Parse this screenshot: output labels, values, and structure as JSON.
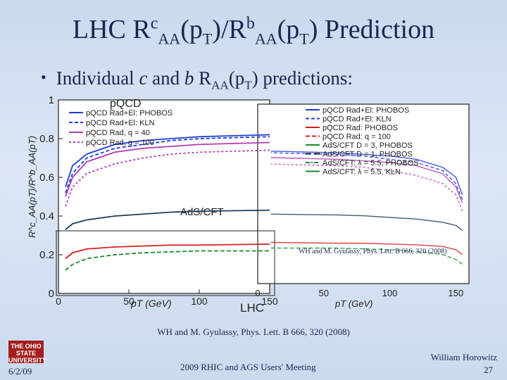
{
  "slide": {
    "title_main": "LHC R",
    "title_sup_c": "c",
    "title_sub_aa1": "AA",
    "title_pt1": "(p",
    "title_sub_t1": "T",
    "title_mid": ")/R",
    "title_sup_b": "b",
    "title_sub_aa2": "AA",
    "title_pt2": "(p",
    "title_sub_t2": "T",
    "title_end": ") Prediction",
    "bullet_pre": "Individual ",
    "bullet_c": "c",
    "bullet_and": " and ",
    "bullet_b": "b",
    "bullet_R": " R",
    "bullet_sub_aa": "AA",
    "bullet_pt": "(p",
    "bullet_sub_t": "T",
    "bullet_post": ") predictions:",
    "citation_left": "WH and M. Gyulassy, Phys. Lett. B 666, 320 (2008)",
    "citation_right": "WH and M. Gyulassy, Phys. Lett. B 666, 320 (2008)",
    "footer_date": "6/2/09",
    "footer_meeting": "2009 RHIC and AGS Users' Meeting",
    "footer_author": "William Horowitz",
    "footer_page": "27",
    "logo_text": "THE OHIO STATE UNIVERSITY"
  },
  "chart_data": {
    "type": "line",
    "title": "",
    "xlabel": "pT (GeV)",
    "ylabel": "R^c_AA(pT)/R^b_AA(pT)",
    "center_label": "LHC",
    "xlim": [
      0,
      150
    ],
    "ylim": [
      0,
      1
    ],
    "yticks": [
      "0",
      "0.2",
      "0.4",
      "0.6",
      "0.8",
      "1"
    ],
    "xticks": [
      "0",
      "50",
      "100",
      "150"
    ],
    "left_panel_labels": [
      "pQCD",
      "AdS/CFT"
    ],
    "legend_left": [
      "pQCD Rad+El: PHOBOS",
      "pQCD Rad+El: KLN",
      "pQCD Rad, q = 40",
      "pQCD Rad, q = 100"
    ],
    "legend_right": [
      "pQCD Rad+El: PHOBOS",
      "pQCD Rad+El: KLN",
      "pQCD Rad: PHOBOS",
      "pQCD Rad: q = 100",
      "AdS/CFT D = 3, PHOBOS",
      "AdS/CFT D = 1, PHOBOS",
      "AdS/CFT: λ = 5.5, PHOBOS",
      "AdS/CFT: λ = 5.5, KLN"
    ],
    "series_left": [
      {
        "name": "pQCD Rad+El: PHOBOS",
        "color": "#1e3cd8",
        "dash": "",
        "x": [
          5,
          10,
          20,
          40,
          60,
          80,
          100,
          150
        ],
        "y": [
          0.55,
          0.66,
          0.72,
          0.77,
          0.79,
          0.8,
          0.81,
          0.82
        ]
      },
      {
        "name": "pQCD Rad+El: KLN",
        "color": "#1e3cd8",
        "dash": "5,3",
        "x": [
          5,
          10,
          20,
          40,
          60,
          80,
          100,
          150
        ],
        "y": [
          0.52,
          0.62,
          0.7,
          0.75,
          0.77,
          0.79,
          0.8,
          0.81
        ]
      },
      {
        "name": "pQCD Rad, q = 40",
        "color": "#b03ab5",
        "dash": "",
        "x": [
          5,
          10,
          20,
          40,
          60,
          80,
          100,
          150
        ],
        "y": [
          0.5,
          0.6,
          0.68,
          0.73,
          0.75,
          0.76,
          0.77,
          0.78
        ]
      },
      {
        "name": "pQCD Rad, q = 100",
        "color": "#b03ab5",
        "dash": "3,3",
        "x": [
          5,
          10,
          20,
          40,
          60,
          80,
          100,
          150
        ],
        "y": [
          0.45,
          0.55,
          0.62,
          0.67,
          0.7,
          0.72,
          0.73,
          0.74
        ]
      },
      {
        "name": "AdS/CFT",
        "color": "#1c3f5c",
        "dash": "",
        "x": [
          5,
          10,
          20,
          40,
          60,
          80,
          100,
          150
        ],
        "y": [
          0.33,
          0.36,
          0.38,
          0.4,
          0.41,
          0.42,
          0.425,
          0.43
        ]
      },
      {
        "name": "AdS/CFT red",
        "color": "#d42020",
        "dash": "",
        "x": [
          5,
          10,
          20,
          40,
          60,
          80,
          100,
          150
        ],
        "y": [
          0.18,
          0.21,
          0.23,
          0.24,
          0.245,
          0.25,
          0.25,
          0.255
        ]
      },
      {
        "name": "AdS/CFT green",
        "color": "#1a8a2e",
        "dash": "6,3",
        "x": [
          5,
          10,
          20,
          40,
          60,
          80,
          100,
          150
        ],
        "y": [
          0.12,
          0.15,
          0.18,
          0.2,
          0.21,
          0.215,
          0.22,
          0.22
        ]
      }
    ]
  }
}
